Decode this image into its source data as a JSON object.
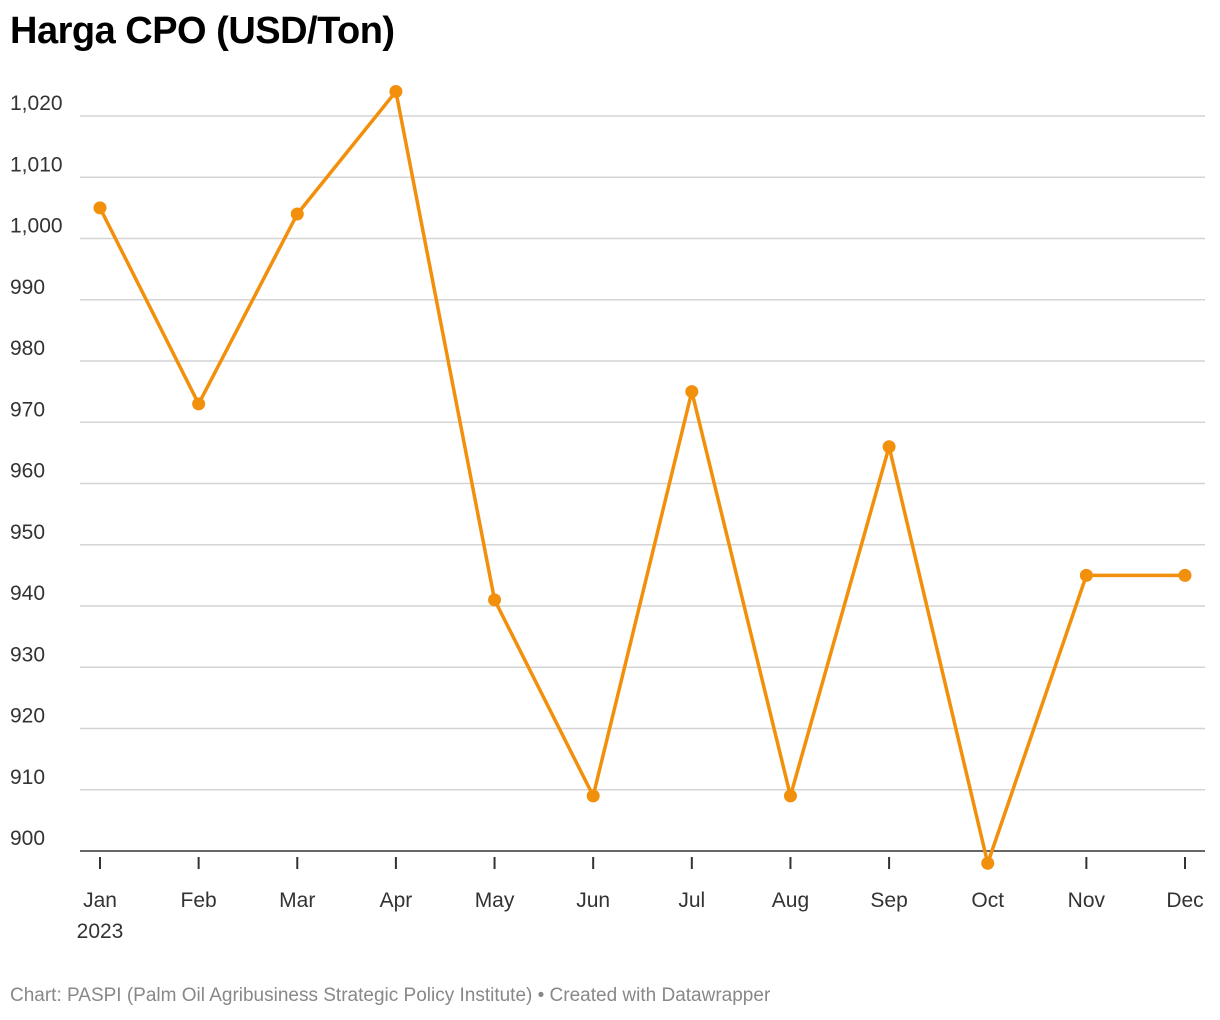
{
  "chart_data": {
    "type": "line",
    "title": "Harga CPO (USD/Ton)",
    "categories": [
      "Jan",
      "Feb",
      "Mar",
      "Apr",
      "May",
      "Jun",
      "Jul",
      "Aug",
      "Sep",
      "Oct",
      "Nov",
      "Dec"
    ],
    "year_label": "2023",
    "series": [
      {
        "name": "Harga CPO",
        "values": [
          1005,
          973,
          1004,
          1024,
          941,
          909,
          975,
          909,
          966,
          898,
          945,
          945
        ]
      }
    ],
    "ylim": [
      900,
      1020
    ],
    "yticks": [
      900,
      910,
      920,
      930,
      940,
      950,
      960,
      970,
      980,
      990,
      1000,
      1010,
      1020
    ],
    "xlabel": "",
    "ylabel": "",
    "grid": true,
    "line_color": "#f28f0b"
  },
  "footer": {
    "source": "Chart: PASPI (Palm Oil Agribusiness Strategic Policy Institute) • Created with Datawrapper"
  }
}
